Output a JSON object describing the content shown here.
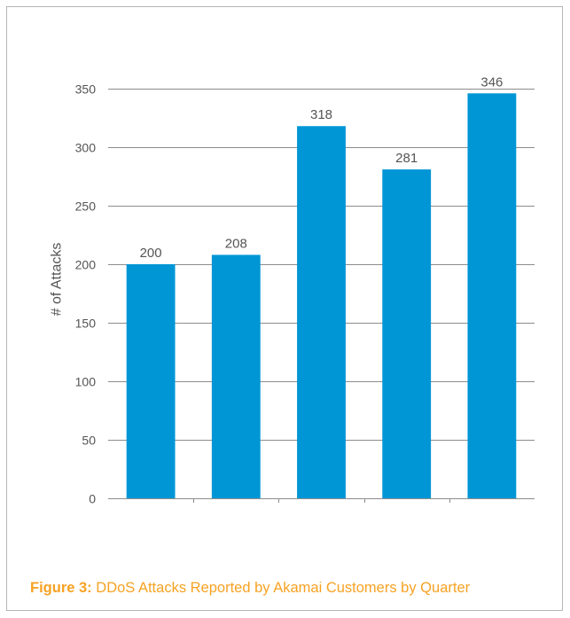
{
  "figure": {
    "label": "Figure 3:",
    "caption": "DDoS Attacks Reported by Akamai Customers by Quarter"
  },
  "chart_data": {
    "type": "bar",
    "title": "",
    "xlabel": "",
    "ylabel": "# of Attacks",
    "categories": [
      "",
      "",
      "",
      "",
      ""
    ],
    "values": [
      200,
      208,
      318,
      281,
      346
    ],
    "data_labels": [
      "200",
      "208",
      "318",
      "281",
      "346"
    ],
    "ylim": [
      0,
      350
    ],
    "yticks": [
      0,
      50,
      100,
      150,
      200,
      250,
      300,
      350
    ],
    "grid": true,
    "legend": "none",
    "colors": {
      "bar": "#0096d6",
      "grid": "#8c8c8c",
      "axis_text": "#555555",
      "caption": "#f7a223"
    }
  }
}
